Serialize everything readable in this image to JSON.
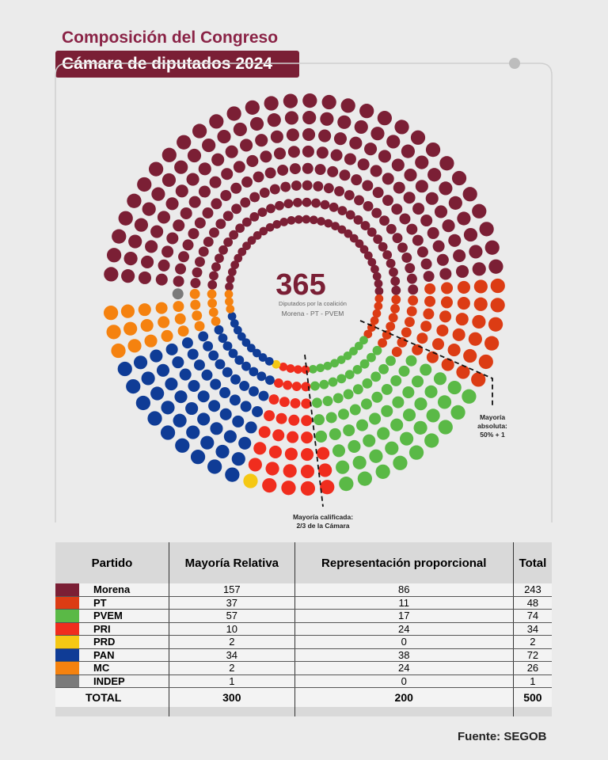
{
  "header": {
    "title": "Composición del Congreso",
    "subtitle": "Cámara de diputados 2024"
  },
  "chart_data": {
    "type": "parliament",
    "center_value": 365,
    "center_label": "Diputados por la coalición",
    "center_sublabel": "Morena - PT - PVEM",
    "annotations": [
      "Mayoría absoluta: 50% + 1",
      "Mayoría calificada: 2/3 de la Cámara"
    ]
  },
  "table": {
    "columns": [
      "Partido",
      "Mayoría Relativa",
      "Representación proporcional",
      "Total"
    ],
    "rows": [
      {
        "party": "Morena",
        "color": "#7b1f35",
        "mr": 157,
        "rp": 86,
        "total": 243
      },
      {
        "party": "PT",
        "color": "#dc3c14",
        "mr": 37,
        "rp": 11,
        "total": 48
      },
      {
        "party": "PVEM",
        "color": "#5ab946",
        "mr": 57,
        "rp": 17,
        "total": 74
      },
      {
        "party": "PRI",
        "color": "#f02d1e",
        "mr": 10,
        "rp": 24,
        "total": 34
      },
      {
        "party": "PRD",
        "color": "#f5c814",
        "mr": 2,
        "rp": 0,
        "total": 2
      },
      {
        "party": "PAN",
        "color": "#0f3c96",
        "mr": 34,
        "rp": 38,
        "total": 72
      },
      {
        "party": "MC",
        "color": "#f5820f",
        "mr": 2,
        "rp": 24,
        "total": 26
      },
      {
        "party": "INDEP",
        "color": "#7a7a7a",
        "mr": 1,
        "rp": 0,
        "total": 1
      }
    ],
    "total_row": {
      "label": "TOTAL",
      "mr": 300,
      "rp": 200,
      "total": 500
    }
  },
  "source": "Fuente: SEGOB"
}
